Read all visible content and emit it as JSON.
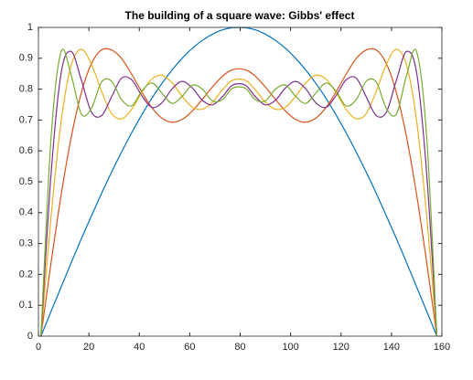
{
  "chart_data": {
    "type": "line",
    "title": "The building of a square wave: Gibbs' effect",
    "x": [
      1,
      5,
      9,
      13,
      17,
      21,
      25,
      29,
      33,
      37,
      41,
      45,
      49,
      53,
      57,
      61,
      65,
      69,
      73,
      77,
      82,
      86,
      90,
      94,
      98,
      102,
      106,
      110,
      114,
      118,
      122,
      126,
      130,
      134,
      138,
      142,
      146,
      150,
      154,
      158
    ],
    "series": [
      {
        "color": "#0072BD",
        "values": [
          0,
          0.08,
          0.159,
          0.238,
          0.315,
          0.389,
          0.462,
          0.531,
          0.597,
          0.659,
          0.717,
          0.771,
          0.819,
          0.862,
          0.9,
          0.932,
          0.958,
          0.978,
          0.992,
          0.999,
          0.999,
          0.992,
          0.978,
          0.958,
          0.932,
          0.9,
          0.862,
          0.819,
          0.771,
          0.717,
          0.659,
          0.597,
          0.531,
          0.462,
          0.389,
          0.315,
          0.238,
          0.159,
          0.08,
          0
        ]
      },
      {
        "color": "#D95319",
        "values": [
          0,
          0.237,
          0.457,
          0.644,
          0.788,
          0.882,
          0.927,
          0.927,
          0.899,
          0.848,
          0.791,
          0.74,
          0.706,
          0.693,
          0.702,
          0.729,
          0.767,
          0.807,
          0.842,
          0.863,
          0.863,
          0.842,
          0.807,
          0.767,
          0.729,
          0.702,
          0.693,
          0.706,
          0.74,
          0.791,
          0.848,
          0.899,
          0.927,
          0.927,
          0.882,
          0.788,
          0.644,
          0.457,
          0.237,
          0
        ]
      },
      {
        "color": "#EDB120",
        "values": [
          0,
          0.386,
          0.696,
          0.877,
          0.929,
          0.881,
          0.794,
          0.721,
          0.704,
          0.735,
          0.789,
          0.833,
          0.845,
          0.82,
          0.777,
          0.742,
          0.735,
          0.758,
          0.798,
          0.829,
          0.829,
          0.798,
          0.758,
          0.735,
          0.742,
          0.777,
          0.82,
          0.845,
          0.833,
          0.789,
          0.735,
          0.704,
          0.721,
          0.794,
          0.881,
          0.929,
          0.877,
          0.696,
          0.386,
          0
        ]
      },
      {
        "color": "#7E2F8E",
        "values": [
          0,
          0.523,
          0.852,
          0.922,
          0.83,
          0.726,
          0.714,
          0.775,
          0.836,
          0.83,
          0.779,
          0.741,
          0.756,
          0.801,
          0.825,
          0.804,
          0.764,
          0.749,
          0.776,
          0.813,
          0.813,
          0.776,
          0.749,
          0.764,
          0.804,
          0.825,
          0.801,
          0.756,
          0.741,
          0.779,
          0.83,
          0.836,
          0.775,
          0.714,
          0.726,
          0.83,
          0.922,
          0.852,
          0.523,
          0
        ]
      },
      {
        "color": "#77AC30",
        "values": [
          0,
          0.642,
          0.921,
          0.845,
          0.72,
          0.737,
          0.823,
          0.826,
          0.766,
          0.746,
          0.794,
          0.82,
          0.787,
          0.754,
          0.777,
          0.813,
          0.8,
          0.762,
          0.766,
          0.803,
          0.803,
          0.766,
          0.762,
          0.8,
          0.813,
          0.777,
          0.754,
          0.787,
          0.82,
          0.794,
          0.746,
          0.766,
          0.826,
          0.823,
          0.737,
          0.72,
          0.845,
          0.921,
          0.642,
          0
        ]
      }
    ],
    "xlim": [
      0,
      160
    ],
    "xticks": [
      0,
      20,
      40,
      60,
      80,
      100,
      120,
      140,
      160
    ],
    "ylim": [
      0,
      1
    ],
    "yticks": [
      0,
      0.1,
      0.2,
      0.3,
      0.4,
      0.5,
      0.6,
      0.7,
      0.8,
      0.9,
      1
    ],
    "grid": false
  }
}
